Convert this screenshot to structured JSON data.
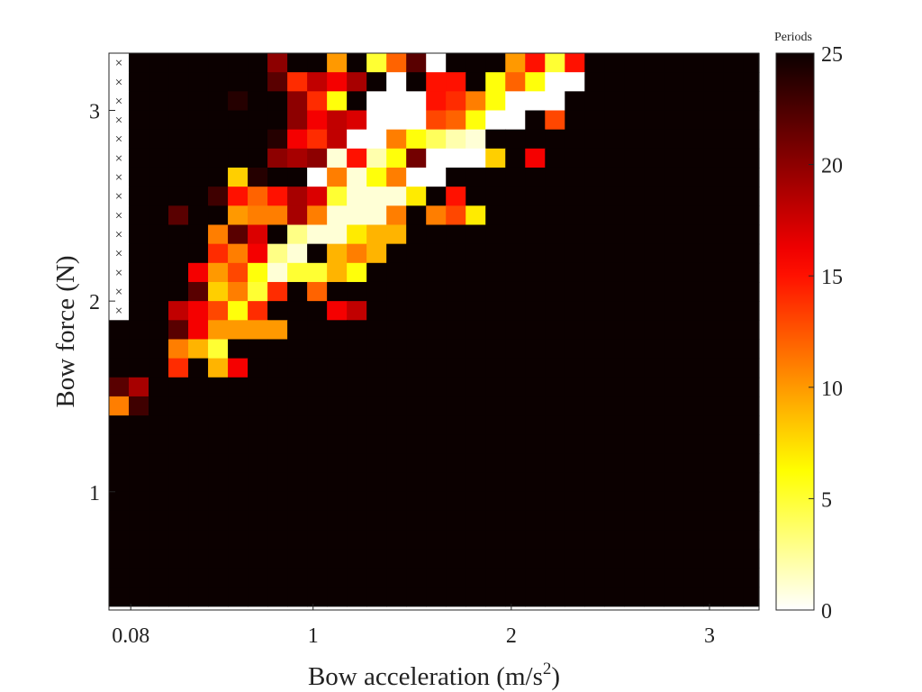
{
  "colors": {
    "colormap": "hot",
    "background_block": "#1a0000",
    "axis": "#262626",
    "marker": "#333333"
  },
  "chart_data": {
    "type": "heatmap",
    "title": "",
    "xlabel": "Bow acceleration (m/s",
    "xlabel_superscript": "2",
    "xlabel_suffix": ")",
    "ylabel": "Bow force (N)",
    "x_ticks": [
      {
        "value": 0.08,
        "label": "0.08"
      },
      {
        "value": 1,
        "label": "1"
      },
      {
        "value": 2,
        "label": "2"
      },
      {
        "value": 3,
        "label": "3"
      }
    ],
    "y_ticks": [
      {
        "value": 1,
        "label": "1"
      },
      {
        "value": 2,
        "label": "2"
      },
      {
        "value": 3,
        "label": "3"
      }
    ],
    "x_range": [
      -0.03,
      3.25
    ],
    "y_range": [
      0.38,
      3.3
    ],
    "x_start": -0.03,
    "x_step": 0.1,
    "y_start": 3.3,
    "y_step": -0.1,
    "n_cols": 33,
    "n_rows": 29,
    "colorbar": {
      "title": "Periods",
      "min": 0,
      "max": 25,
      "ticks": [
        0,
        5,
        10,
        15,
        20,
        25
      ]
    },
    "marker": "×",
    "excluded_column": 0,
    "excluded_rows": [
      0,
      1,
      2,
      3,
      4,
      5,
      6,
      7,
      8,
      9,
      10,
      11,
      12,
      13
    ],
    "default_value": 25,
    "cells": [
      [
        0,
        8,
        20
      ],
      [
        0,
        10,
        25
      ],
      [
        0,
        11,
        10
      ],
      [
        0,
        12,
        25
      ],
      [
        0,
        13,
        5
      ],
      [
        0,
        14,
        12
      ],
      [
        0,
        15,
        22
      ],
      [
        0,
        16,
        0
      ],
      [
        0,
        20,
        10
      ],
      [
        0,
        21,
        15
      ],
      [
        0,
        22,
        5
      ],
      [
        0,
        23,
        15
      ],
      [
        1,
        8,
        22
      ],
      [
        1,
        9,
        14
      ],
      [
        1,
        10,
        18
      ],
      [
        1,
        11,
        16
      ],
      [
        1,
        12,
        19
      ],
      [
        1,
        13,
        25
      ],
      [
        1,
        14,
        0
      ],
      [
        1,
        16,
        15
      ],
      [
        1,
        17,
        15
      ],
      [
        1,
        19,
        6
      ],
      [
        1,
        20,
        12
      ],
      [
        1,
        21,
        6
      ],
      [
        1,
        22,
        0
      ],
      [
        1,
        23,
        0
      ],
      [
        2,
        6,
        24
      ],
      [
        2,
        9,
        20
      ],
      [
        2,
        10,
        14
      ],
      [
        2,
        11,
        6
      ],
      [
        2,
        12,
        25
      ],
      [
        2,
        13,
        0
      ],
      [
        2,
        14,
        0
      ],
      [
        2,
        15,
        0
      ],
      [
        2,
        16,
        15
      ],
      [
        2,
        17,
        14
      ],
      [
        2,
        18,
        11
      ],
      [
        2,
        19,
        6
      ],
      [
        2,
        20,
        0
      ],
      [
        2,
        21,
        0
      ],
      [
        2,
        22,
        0
      ],
      [
        3,
        9,
        20
      ],
      [
        3,
        10,
        16
      ],
      [
        3,
        11,
        18
      ],
      [
        3,
        12,
        17
      ],
      [
        3,
        13,
        0
      ],
      [
        3,
        14,
        0
      ],
      [
        3,
        15,
        0
      ],
      [
        3,
        16,
        13
      ],
      [
        3,
        17,
        12
      ],
      [
        3,
        18,
        6
      ],
      [
        3,
        19,
        0
      ],
      [
        3,
        20,
        0
      ],
      [
        3,
        21,
        25
      ],
      [
        3,
        22,
        13
      ],
      [
        4,
        8,
        24
      ],
      [
        4,
        9,
        16
      ],
      [
        4,
        10,
        14
      ],
      [
        4,
        11,
        18
      ],
      [
        4,
        12,
        0
      ],
      [
        4,
        13,
        0
      ],
      [
        4,
        14,
        11
      ],
      [
        4,
        15,
        6
      ],
      [
        4,
        16,
        4
      ],
      [
        4,
        17,
        2
      ],
      [
        4,
        18,
        1
      ],
      [
        5,
        8,
        20
      ],
      [
        5,
        9,
        19
      ],
      [
        5,
        10,
        20
      ],
      [
        5,
        11,
        1
      ],
      [
        5,
        12,
        15
      ],
      [
        5,
        13,
        2
      ],
      [
        5,
        14,
        6
      ],
      [
        5,
        15,
        21
      ],
      [
        5,
        16,
        0
      ],
      [
        5,
        17,
        0
      ],
      [
        5,
        18,
        0
      ],
      [
        5,
        19,
        8
      ],
      [
        5,
        21,
        16
      ],
      [
        6,
        6,
        8
      ],
      [
        6,
        7,
        24
      ],
      [
        6,
        8,
        25
      ],
      [
        6,
        10,
        0
      ],
      [
        6,
        11,
        11
      ],
      [
        6,
        12,
        1
      ],
      [
        6,
        13,
        6
      ],
      [
        6,
        14,
        11
      ],
      [
        6,
        15,
        0
      ],
      [
        6,
        16,
        0
      ],
      [
        7,
        5,
        23
      ],
      [
        7,
        6,
        15
      ],
      [
        7,
        7,
        12
      ],
      [
        7,
        8,
        15
      ],
      [
        7,
        9,
        19
      ],
      [
        7,
        10,
        17
      ],
      [
        7,
        11,
        5
      ],
      [
        7,
        12,
        1
      ],
      [
        7,
        13,
        1
      ],
      [
        7,
        14,
        1
      ],
      [
        7,
        15,
        7
      ],
      [
        7,
        17,
        15
      ],
      [
        8,
        3,
        22
      ],
      [
        8,
        6,
        10
      ],
      [
        8,
        7,
        11
      ],
      [
        8,
        8,
        11
      ],
      [
        8,
        9,
        19
      ],
      [
        8,
        10,
        11
      ],
      [
        8,
        11,
        1
      ],
      [
        8,
        12,
        1
      ],
      [
        8,
        13,
        1
      ],
      [
        8,
        14,
        11
      ],
      [
        8,
        16,
        11
      ],
      [
        8,
        17,
        13
      ],
      [
        8,
        18,
        7
      ],
      [
        9,
        5,
        11
      ],
      [
        9,
        6,
        22
      ],
      [
        9,
        7,
        17
      ],
      [
        9,
        9,
        3
      ],
      [
        9,
        10,
        1
      ],
      [
        9,
        11,
        1
      ],
      [
        9,
        12,
        7
      ],
      [
        9,
        13,
        9
      ],
      [
        9,
        14,
        9
      ],
      [
        10,
        5,
        14
      ],
      [
        10,
        6,
        11
      ],
      [
        10,
        7,
        16
      ],
      [
        10,
        8,
        3
      ],
      [
        10,
        9,
        1
      ],
      [
        10,
        11,
        9
      ],
      [
        10,
        12,
        11
      ],
      [
        10,
        13,
        9
      ],
      [
        11,
        4,
        16
      ],
      [
        11,
        5,
        10
      ],
      [
        11,
        6,
        13
      ],
      [
        11,
        7,
        6
      ],
      [
        11,
        8,
        1
      ],
      [
        11,
        9,
        5
      ],
      [
        11,
        10,
        5
      ],
      [
        11,
        11,
        9
      ],
      [
        11,
        12,
        6
      ],
      [
        12,
        4,
        22
      ],
      [
        12,
        5,
        8
      ],
      [
        12,
        6,
        11
      ],
      [
        12,
        7,
        5
      ],
      [
        12,
        8,
        14
      ],
      [
        12,
        10,
        12
      ],
      [
        13,
        3,
        18
      ],
      [
        13,
        4,
        16
      ],
      [
        13,
        5,
        13
      ],
      [
        13,
        6,
        6
      ],
      [
        13,
        7,
        14
      ],
      [
        13,
        11,
        16
      ],
      [
        13,
        12,
        18
      ],
      [
        14,
        3,
        22
      ],
      [
        14,
        4,
        16
      ],
      [
        14,
        5,
        10
      ],
      [
        14,
        6,
        10
      ],
      [
        14,
        7,
        10
      ],
      [
        14,
        8,
        10
      ],
      [
        15,
        3,
        11
      ],
      [
        15,
        4,
        9
      ],
      [
        15,
        5,
        5
      ],
      [
        16,
        3,
        14
      ],
      [
        16,
        5,
        9
      ],
      [
        16,
        6,
        16
      ],
      [
        17,
        0,
        22
      ],
      [
        17,
        1,
        19
      ],
      [
        18,
        0,
        11
      ],
      [
        18,
        1,
        23
      ]
    ]
  }
}
